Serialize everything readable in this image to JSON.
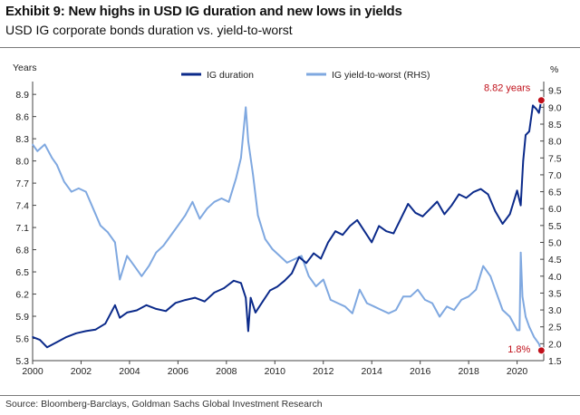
{
  "header": {
    "title": "Exhibit 9: New highs in USD IG duration and new lows in yields",
    "subtitle": "USD IG corporate bonds duration vs. yield-to-worst"
  },
  "footer": {
    "source": "Source: Bloomberg-Barclays, Goldman Sachs Global Investment Research"
  },
  "chart_data": {
    "type": "line",
    "title": "Exhibit 9: New highs in USD IG duration and new lows in yields",
    "subtitle": "USD IG corporate bonds duration vs. yield-to-worst",
    "y_left_unit": "Years",
    "y_right_unit": "%",
    "x_ticks": [
      "2000",
      "2002",
      "2004",
      "2006",
      "2008",
      "2010",
      "2012",
      "2014",
      "2016",
      "2018",
      "2020"
    ],
    "xlim": [
      2000,
      2021.1
    ],
    "ylim_left": [
      5.3,
      9.0
    ],
    "y_left_ticks": [
      "5.3",
      "5.6",
      "5.9",
      "6.2",
      "6.5",
      "6.8",
      "7.1",
      "7.4",
      "7.7",
      "8.0",
      "8.3",
      "8.6",
      "8.9"
    ],
    "ylim_right": [
      1.5,
      9.6
    ],
    "y_right_ticks": [
      "1.5",
      "2.0",
      "2.5",
      "3.0",
      "3.5",
      "4.0",
      "4.5",
      "5.0",
      "5.5",
      "6.0",
      "6.5",
      "7.0",
      "7.5",
      "8.0",
      "8.5",
      "9.0",
      "9.5"
    ],
    "grid": false,
    "legend_position": "top",
    "series": [
      {
        "name": "IG duration",
        "axis": "left",
        "color": "#0b2a8a",
        "x": [
          2000.0,
          2000.3,
          2000.6,
          2001.0,
          2001.4,
          2001.8,
          2002.2,
          2002.6,
          2003.0,
          2003.4,
          2003.6,
          2003.9,
          2004.3,
          2004.7,
          2005.1,
          2005.5,
          2005.9,
          2006.3,
          2006.7,
          2007.1,
          2007.5,
          2007.9,
          2008.3,
          2008.6,
          2008.8,
          2008.9,
          2009.0,
          2009.2,
          2009.5,
          2009.8,
          2010.1,
          2010.4,
          2010.7,
          2011.0,
          2011.3,
          2011.6,
          2011.9,
          2012.2,
          2012.5,
          2012.8,
          2013.1,
          2013.4,
          2013.7,
          2014.0,
          2014.3,
          2014.6,
          2014.9,
          2015.2,
          2015.5,
          2015.8,
          2016.1,
          2016.4,
          2016.7,
          2017.0,
          2017.3,
          2017.6,
          2017.9,
          2018.2,
          2018.5,
          2018.8,
          2019.1,
          2019.4,
          2019.7,
          2020.0,
          2020.15,
          2020.25,
          2020.35,
          2020.5,
          2020.65,
          2020.8,
          2020.9,
          2021.0
        ],
        "values": [
          5.62,
          5.58,
          5.48,
          5.55,
          5.62,
          5.67,
          5.7,
          5.72,
          5.8,
          6.05,
          5.88,
          5.95,
          5.98,
          6.05,
          6.0,
          5.97,
          6.08,
          6.12,
          6.15,
          6.1,
          6.22,
          6.28,
          6.38,
          6.35,
          6.15,
          5.7,
          6.15,
          5.95,
          6.1,
          6.25,
          6.3,
          6.38,
          6.48,
          6.7,
          6.62,
          6.75,
          6.68,
          6.9,
          7.05,
          7.0,
          7.12,
          7.2,
          7.05,
          6.9,
          7.12,
          7.05,
          7.02,
          7.22,
          7.42,
          7.3,
          7.25,
          7.35,
          7.45,
          7.28,
          7.4,
          7.55,
          7.5,
          7.58,
          7.62,
          7.55,
          7.32,
          7.15,
          7.28,
          7.6,
          7.4,
          8.0,
          8.35,
          8.4,
          8.75,
          8.7,
          8.65,
          8.82
        ]
      },
      {
        "name": "IG yield-to-worst (RHS)",
        "axis": "right",
        "color": "#7fa8e0",
        "x": [
          2000.0,
          2000.2,
          2000.5,
          2000.8,
          2001.0,
          2001.3,
          2001.6,
          2001.9,
          2002.2,
          2002.5,
          2002.8,
          2003.1,
          2003.4,
          2003.6,
          2003.9,
          2004.2,
          2004.5,
          2004.8,
          2005.1,
          2005.4,
          2005.7,
          2006.0,
          2006.3,
          2006.6,
          2006.9,
          2007.2,
          2007.5,
          2007.8,
          2008.1,
          2008.4,
          2008.6,
          2008.8,
          2008.9,
          2009.1,
          2009.3,
          2009.6,
          2009.9,
          2010.2,
          2010.5,
          2010.8,
          2011.1,
          2011.4,
          2011.7,
          2012.0,
          2012.3,
          2012.6,
          2012.9,
          2013.2,
          2013.5,
          2013.8,
          2014.1,
          2014.4,
          2014.7,
          2015.0,
          2015.3,
          2015.6,
          2015.9,
          2016.2,
          2016.5,
          2016.8,
          2017.1,
          2017.4,
          2017.7,
          2018.0,
          2018.3,
          2018.6,
          2018.9,
          2019.1,
          2019.4,
          2019.7,
          2020.0,
          2020.1,
          2020.15,
          2020.22,
          2020.35,
          2020.5,
          2020.7,
          2020.9,
          2021.0
        ],
        "values": [
          7.9,
          7.7,
          7.9,
          7.5,
          7.3,
          6.8,
          6.5,
          6.6,
          6.5,
          6.0,
          5.5,
          5.3,
          5.0,
          3.9,
          4.6,
          4.3,
          4.0,
          4.3,
          4.7,
          4.9,
          5.2,
          5.5,
          5.8,
          6.2,
          5.7,
          6.0,
          6.2,
          6.3,
          6.2,
          6.9,
          7.5,
          9.0,
          8.0,
          7.0,
          5.8,
          5.1,
          4.8,
          4.6,
          4.4,
          4.5,
          4.6,
          4.0,
          3.7,
          3.9,
          3.3,
          3.2,
          3.1,
          2.9,
          3.6,
          3.2,
          3.1,
          3.0,
          2.9,
          3.0,
          3.4,
          3.4,
          3.6,
          3.3,
          3.2,
          2.8,
          3.1,
          3.0,
          3.3,
          3.4,
          3.6,
          4.3,
          4.0,
          3.6,
          3.0,
          2.8,
          2.4,
          2.4,
          4.7,
          3.4,
          2.8,
          2.5,
          2.2,
          2.0,
          1.8
        ]
      }
    ],
    "annotations": [
      {
        "text": "8.82 years",
        "series": "IG duration",
        "x": 2021.0,
        "y": 8.82,
        "color": "#c0101a"
      },
      {
        "text": "1.8%",
        "series": "IG yield-to-worst (RHS)",
        "x": 2021.0,
        "y": 1.8,
        "color": "#c0101a"
      }
    ]
  }
}
